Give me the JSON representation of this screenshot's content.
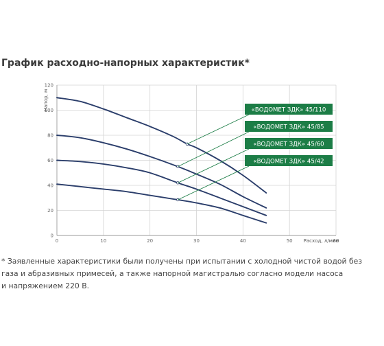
{
  "title": "График расходно-напорных характеристик*",
  "footnote": [
    "* Заявленные характеристики были получены при испытании с холодной чистой водой без",
    "газа и абразивных примесей, а также напорной магистралью согласно модели насоса",
    "и напряжением  220 В."
  ],
  "colors": {
    "line": "#2b3e6b",
    "legend_bg": "#1c7d46",
    "grid": "#d4d4d4",
    "axis": "#9a9a9a"
  },
  "chart_data": {
    "type": "line",
    "xlabel": "Расход, л/мин",
    "ylabel": "Напор, м",
    "xlim": [
      0,
      60
    ],
    "ylim": [
      0,
      120
    ],
    "x_ticks": [
      "0",
      "10",
      "20",
      "30",
      "40",
      "50",
      "60"
    ],
    "y_ticks": [
      "0",
      "20",
      "40",
      "60",
      "80",
      "100",
      "120"
    ],
    "grid": true,
    "legend_position": "right",
    "series": [
      {
        "name": "«ВОДОМЕТ ЗДК» 45/110",
        "x": [
          0,
          5,
          10,
          15,
          20,
          25,
          28,
          30,
          35,
          40,
          45
        ],
        "y": [
          110,
          107,
          101,
          94,
          87,
          79,
          73,
          70,
          60,
          48,
          34
        ],
        "marker_x": 28
      },
      {
        "name": "«ВОДОМЕТ ЗДК» 45/85",
        "x": [
          0,
          5,
          10,
          15,
          20,
          26,
          30,
          35,
          40,
          45
        ],
        "y": [
          80,
          78,
          74,
          69,
          63,
          55,
          49,
          41,
          31,
          22
        ],
        "marker_x": 26
      },
      {
        "name": "«ВОДОМЕТ ЗДК» 45/60",
        "x": [
          0,
          5,
          10,
          15,
          20,
          26,
          30,
          35,
          40,
          45
        ],
        "y": [
          60,
          59,
          57,
          54,
          50,
          42,
          37,
          30,
          23,
          16
        ],
        "marker_x": 26
      },
      {
        "name": "«ВОДОМЕТ ЗДК» 45/42",
        "x": [
          0,
          5,
          10,
          15,
          20,
          26,
          30,
          35,
          40,
          45
        ],
        "y": [
          41,
          39,
          37,
          35,
          32,
          28.5,
          26,
          22,
          16,
          10
        ],
        "marker_x": 26
      }
    ]
  }
}
